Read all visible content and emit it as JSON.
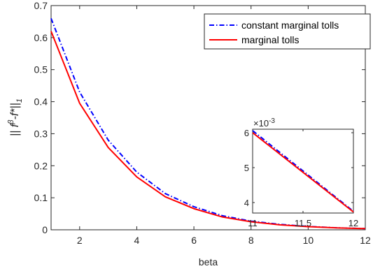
{
  "chart_data": [
    {
      "type": "line",
      "xlabel": "beta",
      "ylabel": {
        "pre": "|| f",
        "sup": "β",
        "mid": "-f*||",
        "sub": "1"
      },
      "xlim": [
        1,
        12
      ],
      "ylim": [
        0,
        0.7
      ],
      "xticks": [
        2,
        4,
        6,
        8,
        10,
        12
      ],
      "yticks": [
        0,
        0.1,
        0.2,
        0.3,
        0.4,
        0.5,
        0.6,
        0.7
      ],
      "grid": false,
      "legend_position": "top-right",
      "x": [
        1,
        2,
        3,
        4,
        5,
        6,
        7,
        8,
        9,
        10,
        11,
        12
      ],
      "series": [
        {
          "name": "constant marginal tolls",
          "color": "#0000ff",
          "style": "dash-dot",
          "values": [
            0.66,
            0.43,
            0.28,
            0.18,
            0.113,
            0.072,
            0.044,
            0.027,
            0.017,
            0.0105,
            0.0062,
            0.0037
          ]
        },
        {
          "name": "marginal tolls",
          "color": "#ff0000",
          "style": "solid",
          "values": [
            0.62,
            0.395,
            0.257,
            0.165,
            0.103,
            0.066,
            0.04,
            0.025,
            0.0155,
            0.0097,
            0.006,
            0.0037
          ]
        }
      ]
    },
    {
      "type": "line",
      "role": "inset",
      "xlim": [
        11,
        12
      ],
      "ylim": [
        0.0037,
        0.0061
      ],
      "xticks": [
        11,
        11.5,
        12
      ],
      "yticks": [
        0.004,
        0.005,
        0.006
      ],
      "ytick_labels": [
        "4",
        "5",
        "6"
      ],
      "exponent_label": {
        "base": "×10",
        "exp": "-3"
      },
      "x": [
        11,
        12
      ],
      "series": [
        {
          "name": "constant marginal tolls",
          "color": "#0000ff",
          "style": "dash-dot",
          "values": [
            0.00606,
            0.00375
          ]
        },
        {
          "name": "marginal tolls",
          "color": "#ff0000",
          "style": "solid",
          "values": [
            0.006,
            0.00373
          ]
        }
      ]
    }
  ]
}
